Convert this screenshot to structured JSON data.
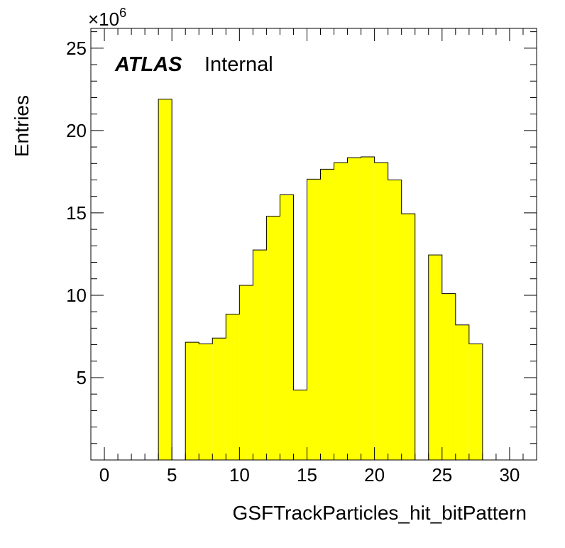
{
  "labels": {
    "atlas": "ATLAS",
    "internal": "Internal",
    "multiplier_base": "×10",
    "multiplier_exp": "6"
  },
  "chart_data": {
    "type": "bar",
    "histogram": true,
    "title": "",
    "xlabel": "GSFTrackParticles_hit_bitPattern",
    "ylabel": "Entries",
    "xlim": [
      -1,
      32
    ],
    "ylim": [
      0,
      26.2
    ],
    "y_multiplier": 1000000,
    "bin_width": 1,
    "x_bin_low_edges": [
      4,
      6,
      7,
      8,
      9,
      10,
      11,
      12,
      13,
      14,
      15,
      16,
      17,
      18,
      19,
      20,
      21,
      22,
      24,
      25,
      26,
      27
    ],
    "values": [
      21.9,
      7.15,
      7.05,
      7.4,
      8.85,
      10.6,
      12.75,
      14.8,
      16.1,
      4.25,
      17.05,
      17.65,
      18.05,
      18.35,
      18.4,
      18.05,
      17.0,
      14.95,
      12.45,
      10.1,
      8.2,
      7.05
    ],
    "x_ticks": [
      0,
      5,
      10,
      15,
      20,
      25,
      30
    ],
    "y_ticks": [
      5,
      10,
      15,
      20,
      25
    ],
    "fill_color": "#ffff00",
    "line_color": "#000000",
    "grid": false,
    "legend": "none"
  }
}
